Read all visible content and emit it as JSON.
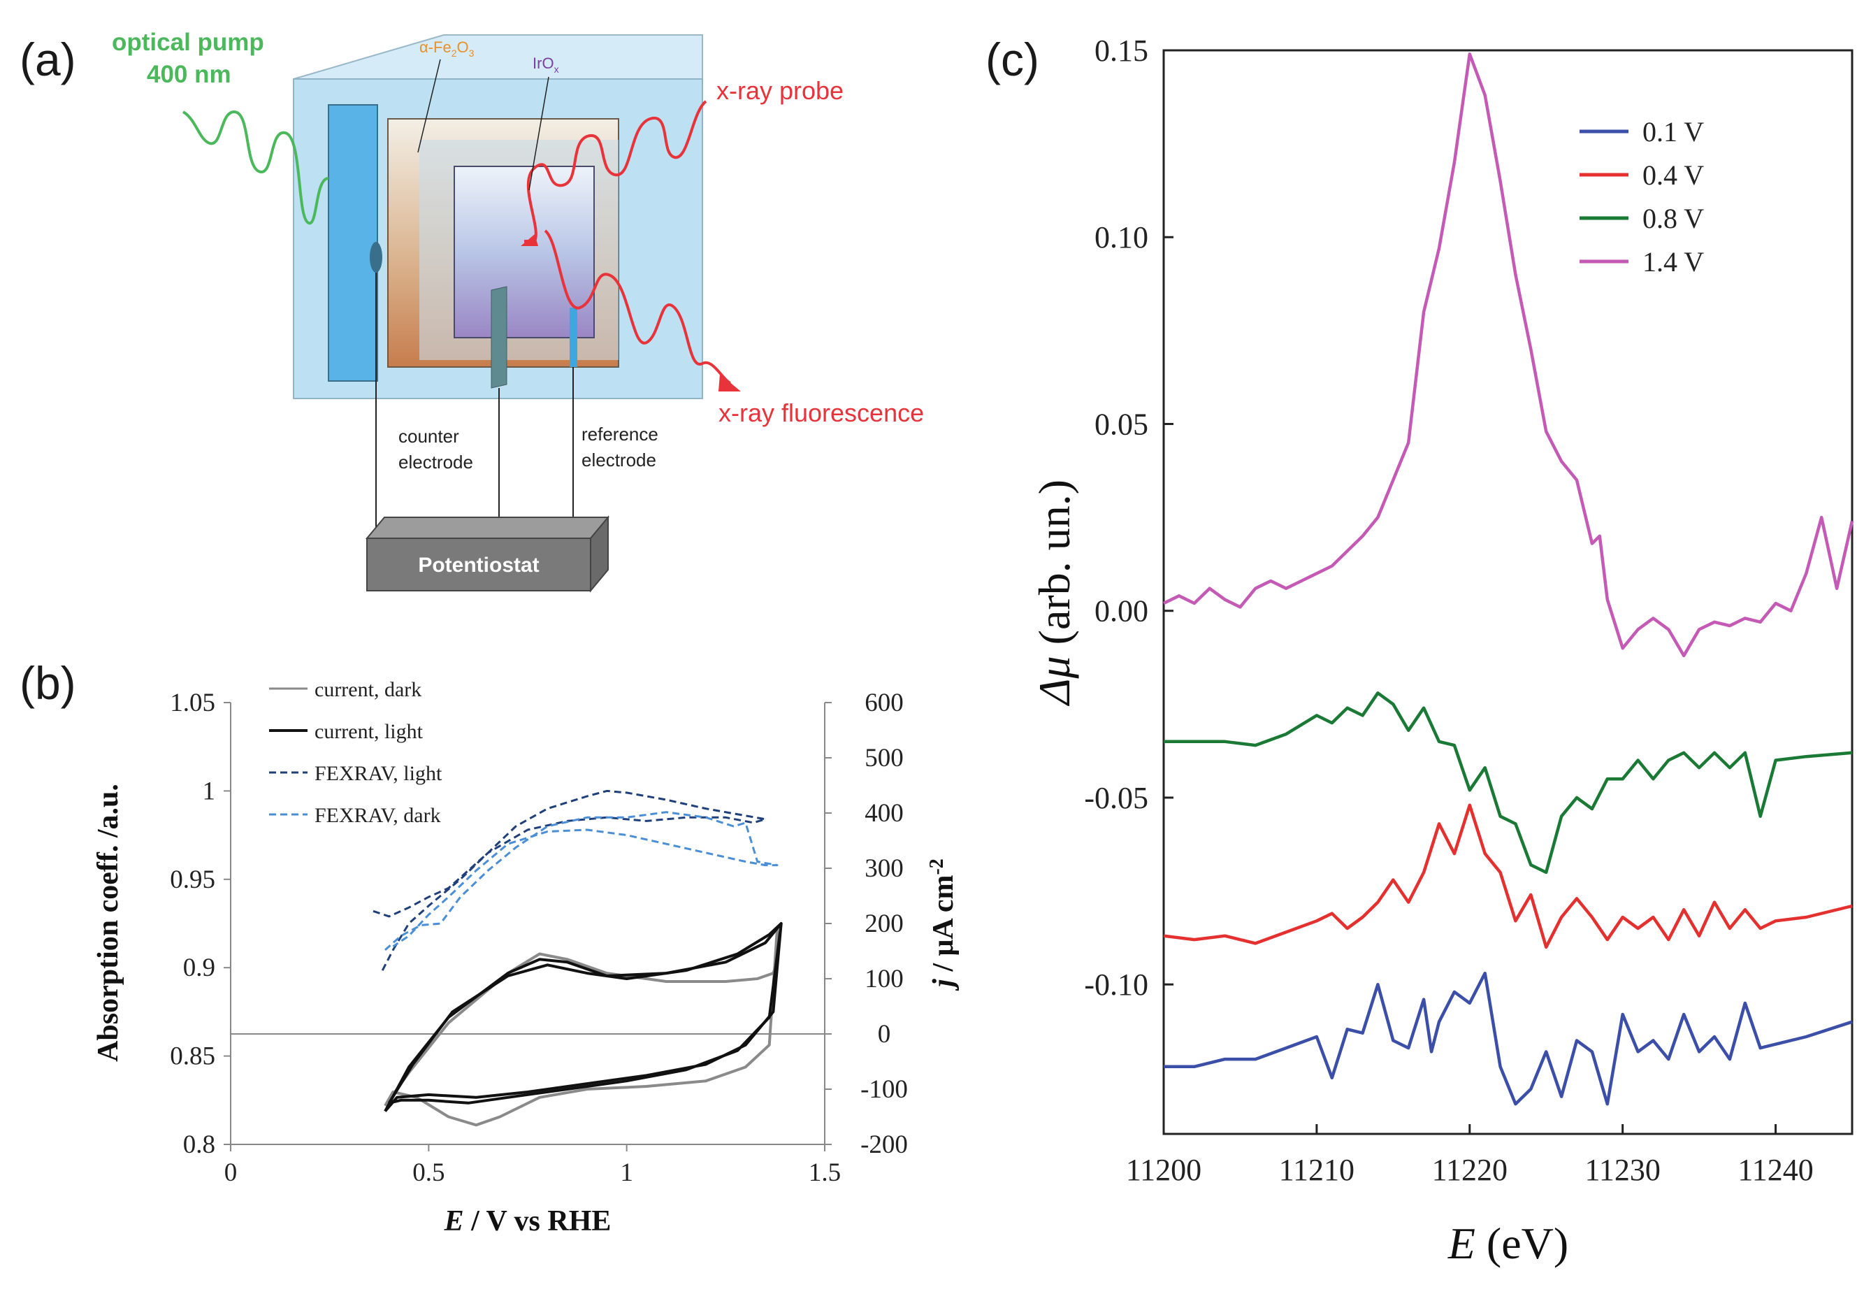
{
  "labels": {
    "a": "(a)",
    "b": "(b)",
    "c": "(c)"
  },
  "diagram": {
    "pump_line1": "optical pump",
    "pump_line2": "400 nm",
    "fe2o3_prefix": "α-Fe",
    "fe2o3_sub1": "2",
    "fe2o3_mid": "O",
    "fe2o3_sub2": "3",
    "irox_main": "IrO",
    "irox_sub": "x",
    "probe": "x-ray probe",
    "fluorescence": "x-ray fluorescence",
    "counter_line1": "counter",
    "counter_line2": "electrode",
    "reference_line1": "reference",
    "reference_line2": "electrode",
    "potentiostat": "Potentiostat",
    "colors": {
      "pump": "#4cb85c",
      "xray": "#e8333a",
      "fe2o3_label": "#e8902a",
      "irox_label": "#7b3fa0",
      "cell": "#bfe2f4"
    }
  },
  "chart_data": [
    {
      "type": "line",
      "id": "b",
      "xlabel_italic": "E",
      "xlabel_rest": " / V vs RHE",
      "ylabel": "Absorption coeff. /a.u.",
      "ylabel2_italic": "j",
      "ylabel2_rest": " / μA cm",
      "ylabel2_sup": "-2",
      "xlim": [
        0,
        1.5
      ],
      "ylim": [
        0.8,
        1.05
      ],
      "y2lim": [
        -200,
        600
      ],
      "x_ticks": [
        "0",
        "0.5",
        "1",
        "1.5"
      ],
      "y_ticks": [
        "0.8",
        "0.85",
        "0.9",
        "0.95",
        "1",
        "1.05"
      ],
      "y2_ticks": [
        "-200",
        "-100",
        "0",
        "100",
        "200",
        "300",
        "400",
        "500",
        "600"
      ],
      "legend": [
        "current, dark",
        "current, light",
        "FEXRAV, light",
        "FEXRAV, dark"
      ],
      "series": [
        {
          "name": "current, dark",
          "axis": "right",
          "color": "#8a8a8a",
          "x": [
            0.39,
            0.45,
            0.55,
            0.7,
            0.78,
            0.85,
            0.95,
            1.1,
            1.25,
            1.33,
            1.37,
            1.38,
            1.38,
            1.36,
            1.3,
            1.2,
            1.05,
            0.9,
            0.78,
            0.68,
            0.62,
            0.55,
            0.47,
            0.41,
            0.39
          ],
          "y": [
            -130,
            -70,
            20,
            110,
            145,
            135,
            110,
            95,
            95,
            100,
            110,
            130,
            190,
            -20,
            -60,
            -85,
            -95,
            -100,
            -115,
            -150,
            -165,
            -150,
            -115,
            -105,
            -130
          ]
        },
        {
          "name": "current, light",
          "axis": "right",
          "color": "#111111",
          "x": [
            0.39,
            0.45,
            0.55,
            0.7,
            0.78,
            0.85,
            0.95,
            1.1,
            1.25,
            1.35,
            1.39,
            1.37,
            1.3,
            1.2,
            1.05,
            0.9,
            0.75,
            0.62,
            0.5,
            0.42,
            0.39
          ],
          "y": [
            -140,
            -60,
            30,
            110,
            135,
            130,
            105,
            110,
            130,
            165,
            200,
            40,
            -20,
            -55,
            -75,
            -90,
            -105,
            -115,
            -110,
            -115,
            -140
          ]
        },
        {
          "name": "current, light (2)",
          "axis": "right",
          "color": "#111111",
          "x": [
            0.4,
            0.46,
            0.56,
            0.7,
            0.8,
            0.9,
            1.0,
            1.15,
            1.28,
            1.36,
            1.39,
            1.36,
            1.28,
            1.15,
            1.0,
            0.85,
            0.7,
            0.6,
            0.5,
            0.43,
            0.4
          ],
          "y": [
            -125,
            -55,
            40,
            105,
            125,
            110,
            100,
            115,
            145,
            180,
            200,
            30,
            -30,
            -65,
            -85,
            -100,
            -115,
            -125,
            -120,
            -120,
            -125
          ]
        },
        {
          "name": "FEXRAV, light",
          "axis": "left",
          "color": "#1e3f7a",
          "dash": "10,6",
          "x": [
            0.36,
            0.4,
            0.45,
            0.5,
            0.55,
            0.6,
            0.65,
            0.72,
            0.8,
            0.9,
            0.95,
            1.0,
            1.1,
            1.2,
            1.3,
            1.35,
            1.32,
            1.25,
            1.15,
            1.05,
            0.95,
            0.85,
            0.75,
            0.65,
            0.58,
            0.5,
            0.45,
            0.41,
            0.38
          ],
          "y": [
            0.932,
            0.929,
            0.934,
            0.94,
            0.945,
            0.955,
            0.965,
            0.98,
            0.99,
            0.997,
            1.0,
            0.999,
            0.995,
            0.99,
            0.986,
            0.984,
            0.982,
            0.985,
            0.985,
            0.983,
            0.985,
            0.983,
            0.978,
            0.965,
            0.95,
            0.935,
            0.925,
            0.91,
            0.897
          ]
        },
        {
          "name": "FEXRAV, dark",
          "axis": "left",
          "color": "#4a8fd6",
          "dash": "10,6",
          "x": [
            0.39,
            0.43,
            0.48,
            0.53,
            0.58,
            0.65,
            0.72,
            0.8,
            0.9,
            1.0,
            1.1,
            1.2,
            1.27,
            1.3,
            1.33,
            1.38,
            1.35,
            1.3,
            1.2,
            1.1,
            1.0,
            0.9,
            0.8,
            0.7,
            0.62,
            0.55,
            0.5,
            0.45,
            0.41
          ],
          "y": [
            0.91,
            0.918,
            0.924,
            0.925,
            0.94,
            0.955,
            0.968,
            0.98,
            0.985,
            0.985,
            0.988,
            0.985,
            0.98,
            0.982,
            0.96,
            0.958,
            0.958,
            0.96,
            0.965,
            0.97,
            0.975,
            0.978,
            0.977,
            0.97,
            0.955,
            0.94,
            0.93,
            0.918,
            0.912
          ]
        }
      ]
    },
    {
      "type": "line",
      "id": "c",
      "xlabel_italic": "E",
      "xlabel_rest": " (eV)",
      "ylabel_italic": "Δμ",
      "ylabel_rest": " (arb. un.)",
      "xlim": [
        11200,
        11245
      ],
      "ylim": [
        -0.14,
        0.15
      ],
      "x_ticks": [
        "11200",
        "11210",
        "11220",
        "11230",
        "11240"
      ],
      "y_ticks": [
        "-0.10",
        "-0.05",
        "0.00",
        "0.05",
        "0.10",
        "0.15"
      ],
      "legend": [
        "0.1 V",
        "0.4 V",
        "0.8 V",
        "1.4 V"
      ],
      "series": [
        {
          "name": "0.1 V",
          "color": "#3b4fa8",
          "x": [
            11200,
            11202,
            11204,
            11206,
            11208,
            11210,
            11211,
            11212,
            11213,
            11214,
            11215,
            11216,
            11217,
            11217.5,
            11218,
            11219,
            11220,
            11221,
            11222,
            11223,
            11224,
            11225,
            11226,
            11227,
            11228,
            11229,
            11230,
            11231,
            11232,
            11233,
            11234,
            11235,
            11236,
            11237,
            11238,
            11239,
            11240,
            11242,
            11245
          ],
          "y": [
            -0.122,
            -0.122,
            -0.12,
            -0.12,
            -0.117,
            -0.114,
            -0.125,
            -0.112,
            -0.113,
            -0.1,
            -0.115,
            -0.117,
            -0.104,
            -0.118,
            -0.11,
            -0.102,
            -0.105,
            -0.097,
            -0.122,
            -0.132,
            -0.128,
            -0.118,
            -0.13,
            -0.115,
            -0.118,
            -0.132,
            -0.108,
            -0.118,
            -0.115,
            -0.12,
            -0.108,
            -0.118,
            -0.114,
            -0.12,
            -0.105,
            -0.117,
            -0.116,
            -0.114,
            -0.11
          ]
        },
        {
          "name": "0.4 V",
          "color": "#e4312f",
          "x": [
            11200,
            11202,
            11204,
            11206,
            11208,
            11210,
            11211,
            11212,
            11213,
            11214,
            11215,
            11216,
            11217,
            11218,
            11219,
            11220,
            11221,
            11222,
            11223,
            11224,
            11225,
            11226,
            11227,
            11228,
            11229,
            11230,
            11231,
            11232,
            11233,
            11234,
            11235,
            11236,
            11237,
            11238,
            11239,
            11240,
            11242,
            11245
          ],
          "y": [
            -0.087,
            -0.088,
            -0.087,
            -0.089,
            -0.086,
            -0.083,
            -0.081,
            -0.085,
            -0.082,
            -0.078,
            -0.072,
            -0.078,
            -0.07,
            -0.057,
            -0.065,
            -0.052,
            -0.065,
            -0.07,
            -0.083,
            -0.076,
            -0.09,
            -0.082,
            -0.077,
            -0.082,
            -0.088,
            -0.082,
            -0.085,
            -0.082,
            -0.088,
            -0.08,
            -0.087,
            -0.078,
            -0.085,
            -0.08,
            -0.085,
            -0.083,
            -0.082,
            -0.079
          ]
        },
        {
          "name": "0.8 V",
          "color": "#1a7a35",
          "x": [
            11200,
            11202,
            11204,
            11206,
            11208,
            11210,
            11211,
            11212,
            11213,
            11214,
            11215,
            11216,
            11217,
            11218,
            11219,
            11220,
            11221,
            11222,
            11223,
            11224,
            11225,
            11226,
            11227,
            11228,
            11229,
            11230,
            11231,
            11232,
            11233,
            11234,
            11235,
            11236,
            11237,
            11238,
            11239,
            11240,
            11242,
            11245
          ],
          "y": [
            -0.035,
            -0.035,
            -0.035,
            -0.036,
            -0.033,
            -0.028,
            -0.03,
            -0.026,
            -0.028,
            -0.022,
            -0.025,
            -0.032,
            -0.026,
            -0.035,
            -0.036,
            -0.048,
            -0.042,
            -0.055,
            -0.057,
            -0.068,
            -0.07,
            -0.055,
            -0.05,
            -0.053,
            -0.045,
            -0.045,
            -0.04,
            -0.045,
            -0.04,
            -0.038,
            -0.042,
            -0.038,
            -0.042,
            -0.038,
            -0.055,
            -0.04,
            -0.039,
            -0.038
          ]
        },
        {
          "name": "1.4 V",
          "color": "#c45ab6",
          "x": [
            11200,
            11201,
            11202,
            11203,
            11204,
            11205,
            11206,
            11207,
            11208,
            11209,
            11210,
            11211,
            11212,
            11213,
            11214,
            11215,
            11216,
            11217,
            11218,
            11219,
            11220,
            11221,
            11222,
            11223,
            11224,
            11225,
            11226,
            11227,
            11228,
            11228.5,
            11229,
            11230,
            11231,
            11232,
            11233,
            11234,
            11235,
            11236,
            11237,
            11238,
            11239,
            11240,
            11241,
            11242,
            11243,
            11244,
            11245
          ],
          "y": [
            0.002,
            0.004,
            0.002,
            0.006,
            0.003,
            0.001,
            0.006,
            0.008,
            0.006,
            0.008,
            0.01,
            0.012,
            0.016,
            0.02,
            0.025,
            0.035,
            0.045,
            0.08,
            0.097,
            0.12,
            0.149,
            0.138,
            0.115,
            0.09,
            0.07,
            0.048,
            0.04,
            0.035,
            0.018,
            0.02,
            0.003,
            -0.01,
            -0.005,
            -0.002,
            -0.005,
            -0.012,
            -0.005,
            -0.003,
            -0.004,
            -0.002,
            -0.003,
            0.002,
            0.0,
            0.01,
            0.025,
            0.006,
            0.024
          ]
        }
      ]
    }
  ]
}
